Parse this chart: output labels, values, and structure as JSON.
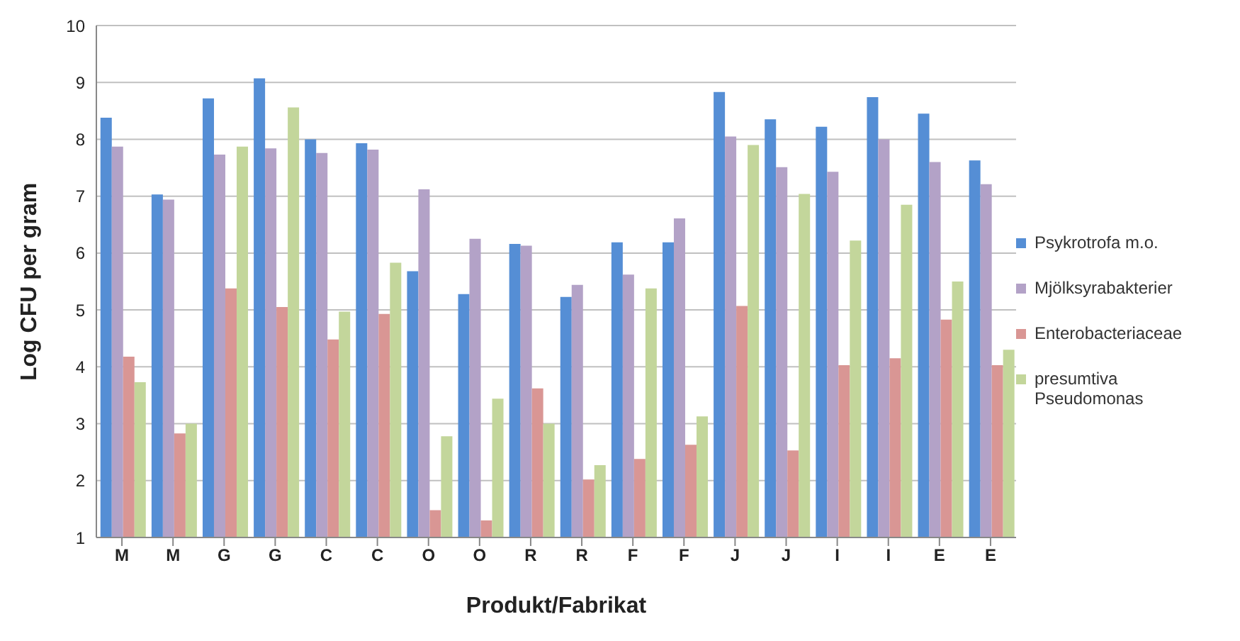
{
  "chart_data": {
    "type": "bar",
    "xlabel": "Produkt/Fabrikat",
    "ylabel": "Log CFU per gram",
    "categories": [
      "M",
      "M",
      "G",
      "G",
      "C",
      "C",
      "O",
      "O",
      "R",
      "R",
      "F",
      "F",
      "J",
      "J",
      "I",
      "I",
      "E",
      "E"
    ],
    "series": [
      {
        "name": "Psykrotrofa m.o.",
        "color": "#558ed5",
        "values": [
          8.38,
          7.03,
          8.72,
          9.07,
          8.0,
          7.93,
          5.68,
          5.28,
          6.16,
          5.23,
          6.19,
          6.19,
          8.83,
          8.35,
          8.22,
          8.74,
          8.45,
          7.63
        ]
      },
      {
        "name": "Mjölksyrabakterier",
        "color": "#b3a2c7",
        "values": [
          7.87,
          6.94,
          7.73,
          7.84,
          7.76,
          7.82,
          7.12,
          6.25,
          6.13,
          5.44,
          5.62,
          6.61,
          8.05,
          7.51,
          7.43,
          8.0,
          7.6,
          7.21
        ]
      },
      {
        "name": "Enterobacteriaceae",
        "color": "#d99694",
        "values": [
          4.18,
          2.83,
          5.38,
          5.05,
          4.48,
          4.93,
          1.48,
          1.3,
          3.62,
          2.02,
          2.38,
          2.63,
          5.07,
          2.53,
          4.03,
          4.15,
          4.83,
          4.03
        ]
      },
      {
        "name": "presumtiva Pseudomonas",
        "color": "#c3d69b",
        "values": [
          3.73,
          3.0,
          7.87,
          8.56,
          4.97,
          5.83,
          2.78,
          3.44,
          3.0,
          2.27,
          5.38,
          3.13,
          7.9,
          7.04,
          6.22,
          6.85,
          5.5,
          4.3
        ]
      }
    ],
    "ylim": [
      1,
      10
    ],
    "yticks": [
      1,
      2,
      3,
      4,
      5,
      6,
      7,
      8,
      9,
      10
    ],
    "grid": "y",
    "legend": "right"
  }
}
